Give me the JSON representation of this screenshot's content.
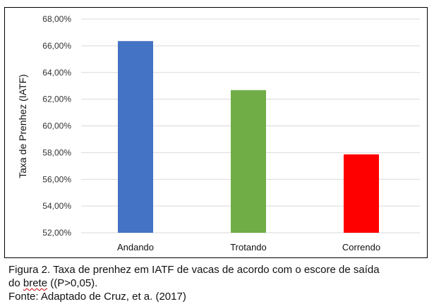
{
  "chart_data": {
    "type": "bar",
    "categories": [
      "Andando",
      "Trotando",
      "Correndo"
    ],
    "values": [
      66.35,
      62.68,
      57.87
    ],
    "colors": [
      "#4472c4",
      "#70ad47",
      "#ff0000"
    ],
    "ylabel": "Taxa de Prenhez (IATF)",
    "ylim": [
      52,
      68
    ],
    "yticks": [
      "52,00%",
      "54,00%",
      "56,00%",
      "58,00%",
      "60,00%",
      "62,00%",
      "64,00%",
      "66,00%",
      "68,00%"
    ],
    "grid": true
  },
  "caption": {
    "line1": "Figura 2. Taxa de prenhez em IATF de vacas de acordo com o escore de saída",
    "line2_start": "do ",
    "line2_flagged": "brete",
    "line2_end": " ((P>0,05).",
    "line3": "Fonte: Adaptado de Cruz, et a. (2017)"
  }
}
